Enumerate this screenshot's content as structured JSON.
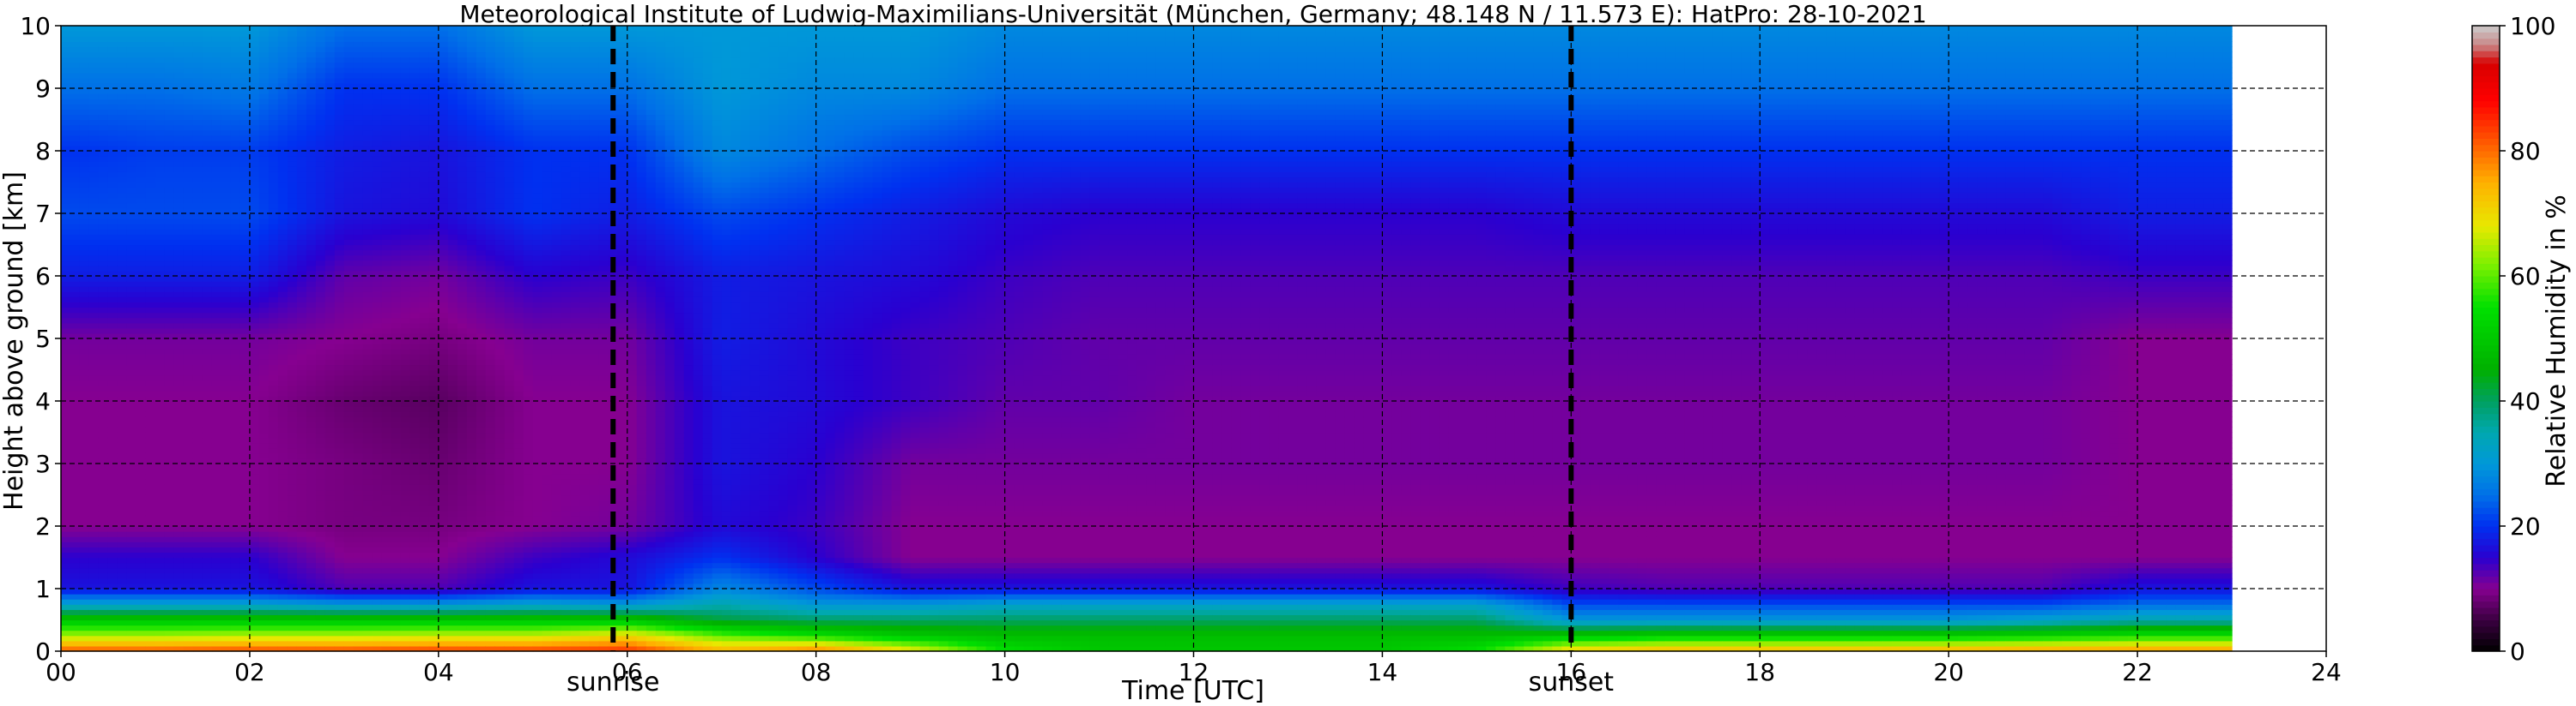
{
  "chart_data": {
    "type": "heatmap",
    "title": "Meteorological Institute of Ludwig-Maximilians-Universität (München, Germany; 48.148 N / 11.573 E):    HatPro: 28-10-2021",
    "xlabel": "Time [UTC]",
    "ylabel": "Height above ground [km]",
    "xlim": [
      0,
      24
    ],
    "ylim": [
      0,
      10
    ],
    "x_tick_labels": [
      "00",
      "02",
      "04",
      "06",
      "08",
      "10",
      "12",
      "14",
      "16",
      "18",
      "20",
      "22",
      "24"
    ],
    "y_tick_labels": [
      "0",
      "1",
      "2",
      "3",
      "4",
      "5",
      "6",
      "7",
      "8",
      "9",
      "10"
    ],
    "grid": true,
    "data_end_hour": 23.0,
    "annotations": [
      {
        "label": "sunrise",
        "x": 5.85
      },
      {
        "label": "sunset",
        "x": 16.0
      }
    ],
    "colorbar": {
      "label": "Relative Humidity in %",
      "range": [
        0,
        100
      ],
      "tick_labels": [
        "0",
        "20",
        "40",
        "60",
        "80",
        "100"
      ]
    },
    "heights_km": [
      0.0,
      0.25,
      0.5,
      0.75,
      1.0,
      1.5,
      2.0,
      3.0,
      4.0,
      5.0,
      6.0,
      7.0,
      8.0,
      9.0,
      10.0
    ],
    "times_utc": [
      0,
      1,
      2,
      3,
      4,
      5,
      6,
      7,
      8,
      9,
      10,
      11,
      12,
      13,
      14,
      15,
      16,
      17,
      18,
      19,
      20,
      21,
      22,
      23
    ],
    "relative_humidity_percent": [
      [
        82,
        64,
        50,
        32,
        17,
        15,
        10,
        10,
        10,
        11,
        18,
        22,
        20,
        25,
        30
      ],
      [
        82,
        64,
        50,
        32,
        17,
        15,
        10,
        10,
        10,
        11,
        18,
        22,
        21,
        25,
        30
      ],
      [
        83,
        65,
        50,
        32,
        17,
        15,
        10,
        10,
        10,
        11,
        18,
        22,
        21,
        26,
        30
      ],
      [
        83,
        65,
        50,
        30,
        13,
        10,
        9,
        9,
        8,
        10,
        12,
        17,
        18,
        20,
        25
      ],
      [
        84,
        66,
        50,
        30,
        13,
        10,
        9,
        8,
        7,
        9,
        11,
        16,
        17,
        20,
        25
      ],
      [
        84,
        66,
        50,
        32,
        17,
        14,
        10,
        10,
        10,
        11,
        15,
        20,
        20,
        25,
        30
      ],
      [
        85,
        70,
        50,
        30,
        17,
        16,
        11,
        10,
        10,
        11,
        14,
        18,
        20,
        25,
        30
      ],
      [
        75,
        60,
        42,
        35,
        28,
        20,
        16,
        17,
        17,
        18,
        18,
        22,
        28,
        30,
        30
      ],
      [
        80,
        55,
        40,
        30,
        22,
        15,
        14,
        15,
        16,
        16,
        17,
        20,
        25,
        28,
        30
      ],
      [
        70,
        50,
        40,
        30,
        17,
        10,
        10,
        11,
        14,
        14,
        16,
        18,
        22,
        28,
        30
      ],
      [
        55,
        48,
        40,
        32,
        17,
        10,
        10,
        11,
        12,
        13,
        14,
        16,
        20,
        25,
        28
      ],
      [
        50,
        48,
        40,
        32,
        17,
        10,
        10,
        11,
        12,
        12,
        13,
        15,
        20,
        25,
        28
      ],
      [
        50,
        48,
        40,
        32,
        17,
        10,
        10,
        11,
        11,
        12,
        13,
        15,
        20,
        25,
        28
      ],
      [
        50,
        48,
        40,
        32,
        17,
        10,
        10,
        11,
        11,
        12,
        13,
        15,
        20,
        25,
        28
      ],
      [
        50,
        48,
        40,
        32,
        17,
        10,
        10,
        11,
        11,
        12,
        13,
        15,
        20,
        25,
        28
      ],
      [
        55,
        48,
        40,
        32,
        17,
        10,
        10,
        11,
        11,
        12,
        13,
        15,
        20,
        25,
        28
      ],
      [
        72,
        50,
        30,
        22,
        14,
        10,
        10,
        11,
        11,
        12,
        13,
        16,
        20,
        25,
        28
      ],
      [
        75,
        52,
        30,
        22,
        13,
        10,
        10,
        11,
        11,
        12,
        13,
        16,
        20,
        25,
        28
      ],
      [
        75,
        52,
        30,
        22,
        13,
        10,
        10,
        11,
        11,
        12,
        13,
        16,
        20,
        25,
        28
      ],
      [
        75,
        52,
        30,
        22,
        13,
        10,
        10,
        11,
        11,
        12,
        13,
        16,
        20,
        25,
        28
      ],
      [
        76,
        52,
        30,
        22,
        13,
        10,
        10,
        11,
        11,
        12,
        13,
        16,
        20,
        25,
        28
      ],
      [
        77,
        53,
        32,
        22,
        13,
        10,
        10,
        11,
        11,
        12,
        13,
        16,
        20,
        25,
        28
      ],
      [
        78,
        55,
        35,
        25,
        17,
        10,
        10,
        10,
        10,
        10,
        14,
        18,
        20,
        25,
        28
      ],
      [
        78,
        55,
        35,
        25,
        17,
        10,
        10,
        10,
        10,
        10,
        14,
        18,
        20,
        25,
        28
      ]
    ],
    "colormap_stops": [
      {
        "value": 0,
        "color": "#000000"
      },
      {
        "value": 5,
        "color": "#3a0040"
      },
      {
        "value": 10,
        "color": "#860090"
      },
      {
        "value": 15,
        "color": "#2a00d0"
      },
      {
        "value": 20,
        "color": "#0030f0"
      },
      {
        "value": 25,
        "color": "#0070e8"
      },
      {
        "value": 30,
        "color": "#0098d8"
      },
      {
        "value": 35,
        "color": "#00a8b0"
      },
      {
        "value": 40,
        "color": "#00a060"
      },
      {
        "value": 45,
        "color": "#00b000"
      },
      {
        "value": 55,
        "color": "#00e000"
      },
      {
        "value": 62,
        "color": "#80f000"
      },
      {
        "value": 68,
        "color": "#e8e800"
      },
      {
        "value": 75,
        "color": "#ffb000"
      },
      {
        "value": 82,
        "color": "#ff5000"
      },
      {
        "value": 88,
        "color": "#ff0000"
      },
      {
        "value": 94,
        "color": "#d80000"
      },
      {
        "value": 97,
        "color": "#c88888"
      },
      {
        "value": 100,
        "color": "#cccccc"
      }
    ]
  }
}
